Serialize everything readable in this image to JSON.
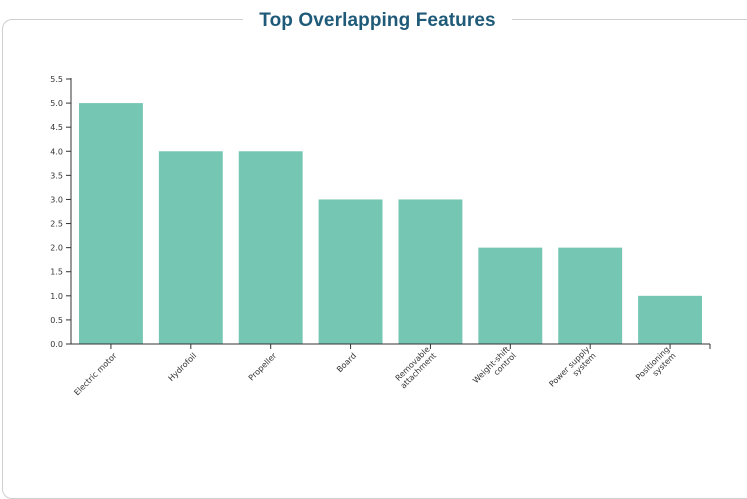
{
  "chart_data": {
    "type": "bar",
    "title": "Top Overlapping Features",
    "categories": [
      [
        "Electric motor"
      ],
      [
        "Hydrofoil"
      ],
      [
        "Propeller"
      ],
      [
        "Board"
      ],
      [
        "Removable",
        "attachment"
      ],
      [
        "Weight-shift",
        "control"
      ],
      [
        "Power supply",
        "system"
      ],
      [
        "Positioning",
        "system"
      ]
    ],
    "values": [
      5,
      4,
      4,
      3,
      3,
      2,
      2,
      1
    ],
    "ylim": [
      0,
      5.5
    ],
    "yticks": [
      "0.0",
      "0.5",
      "1.0",
      "1.5",
      "2.0",
      "2.5",
      "3.0",
      "3.5",
      "4.0",
      "4.5",
      "5.0",
      "5.5"
    ],
    "xlabel": "",
    "ylabel": "",
    "grid": false,
    "colors": {
      "bar": "#76c6b4",
      "axis": "#333333",
      "title": "#1f5a78"
    }
  }
}
